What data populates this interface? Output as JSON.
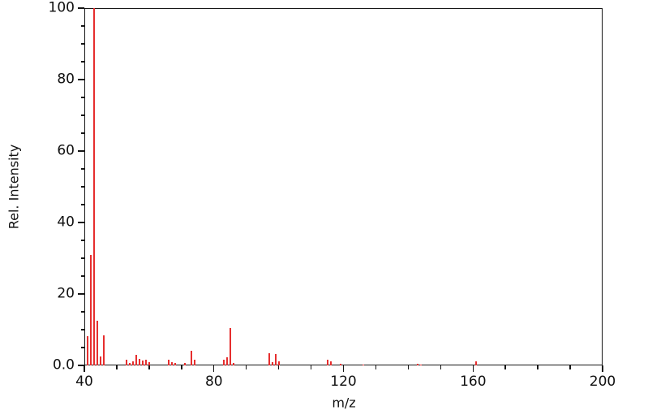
{
  "chart_data": {
    "type": "bar",
    "subtype": "mass-spectrum-stick-plot",
    "title": "",
    "xlabel": "m/z",
    "ylabel": "Rel. Intensity",
    "xlim": [
      40,
      200
    ],
    "ylim": [
      0,
      100
    ],
    "x_major_ticks": [
      40,
      80,
      120,
      160,
      200
    ],
    "x_major_tick_labels": [
      "40",
      "80",
      "120",
      "160",
      "200"
    ],
    "x_minor_step": 10,
    "y_major_ticks": [
      0,
      20,
      40,
      60,
      80,
      100
    ],
    "y_major_tick_labels": [
      "0.0",
      "20",
      "40",
      "60",
      "80",
      "100"
    ],
    "y_minor_step": 5,
    "grid": false,
    "legend_position": "none",
    "bar_color": "#e62e2e",
    "axis_color": "#161616",
    "peaks": [
      {
        "mz": 41,
        "intensity": 8.3
      },
      {
        "mz": 42,
        "intensity": 31.0
      },
      {
        "mz": 43,
        "intensity": 100.0
      },
      {
        "mz": 44,
        "intensity": 12.5
      },
      {
        "mz": 45,
        "intensity": 2.6
      },
      {
        "mz": 46,
        "intensity": 8.5
      },
      {
        "mz": 53,
        "intensity": 1.7
      },
      {
        "mz": 54,
        "intensity": 0.8
      },
      {
        "mz": 55,
        "intensity": 1.1
      },
      {
        "mz": 56,
        "intensity": 3.0
      },
      {
        "mz": 57,
        "intensity": 1.9
      },
      {
        "mz": 58,
        "intensity": 1.4
      },
      {
        "mz": 59,
        "intensity": 1.7
      },
      {
        "mz": 60,
        "intensity": 1.0
      },
      {
        "mz": 66,
        "intensity": 1.6
      },
      {
        "mz": 67,
        "intensity": 0.9
      },
      {
        "mz": 68,
        "intensity": 0.6
      },
      {
        "mz": 71,
        "intensity": 0.8
      },
      {
        "mz": 73,
        "intensity": 4.2
      },
      {
        "mz": 74,
        "intensity": 1.5
      },
      {
        "mz": 83,
        "intensity": 1.5
      },
      {
        "mz": 84,
        "intensity": 2.2
      },
      {
        "mz": 85,
        "intensity": 10.5
      },
      {
        "mz": 86,
        "intensity": 0.7
      },
      {
        "mz": 97,
        "intensity": 3.4
      },
      {
        "mz": 98,
        "intensity": 1.0
      },
      {
        "mz": 99,
        "intensity": 3.2
      },
      {
        "mz": 100,
        "intensity": 1.2
      },
      {
        "mz": 115,
        "intensity": 1.7
      },
      {
        "mz": 116,
        "intensity": 1.2
      },
      {
        "mz": 119,
        "intensity": 0.4
      },
      {
        "mz": 126,
        "intensity": 0.3
      },
      {
        "mz": 143,
        "intensity": 0.4
      },
      {
        "mz": 144,
        "intensity": 0.3
      },
      {
        "mz": 161,
        "intensity": 1.1
      }
    ]
  }
}
